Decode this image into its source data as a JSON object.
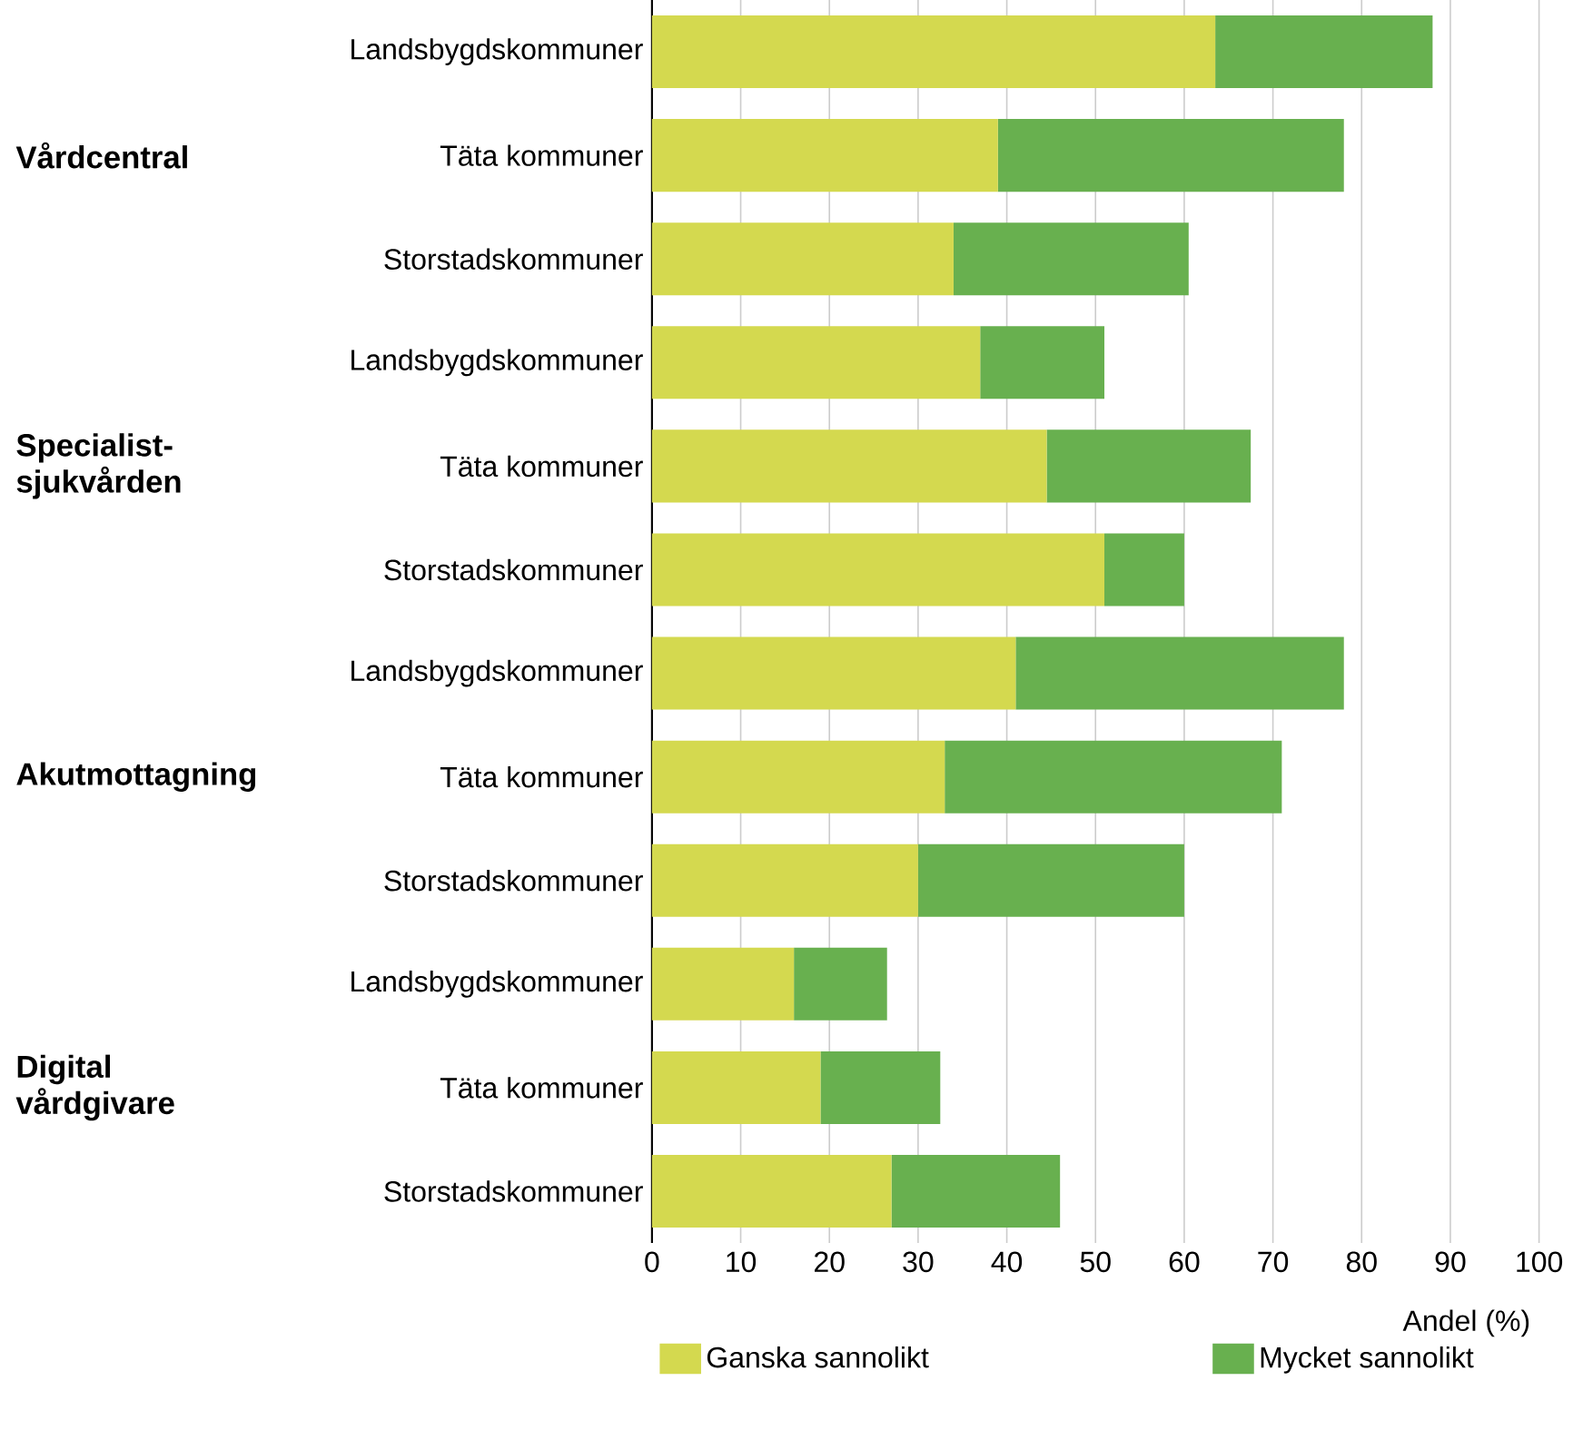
{
  "chart_data": {
    "type": "bar",
    "orientation": "horizontal",
    "stacked": true,
    "categories": [
      "Landsbygdskommuner",
      "Täta kommuner",
      "Storstadskommuner",
      "Landsbygdskommuner",
      "Täta kommuner",
      "Storstadskommuner",
      "Landsbygdskommuner",
      "Täta kommuner",
      "Storstadskommuner",
      "Landsbygdskommuner",
      "Täta kommuner",
      "Storstadskommuner"
    ],
    "series": [
      {
        "name": "Ganska sannolikt",
        "color": "#d4d94f",
        "values": [
          63.5,
          39,
          34,
          37,
          44.5,
          51,
          41,
          33,
          30,
          16,
          19,
          27
        ]
      },
      {
        "name": "Mycket sannolikt",
        "color": "#68b04f",
        "values": [
          24.5,
          39,
          26.5,
          14,
          23,
          9,
          37,
          38,
          30,
          10.5,
          13.5,
          19
        ]
      }
    ],
    "annotations": [
      "Vårdcentral",
      "Specialist-sjukvården",
      "Akutmottagning",
      "Digital vårdgivare"
    ],
    "xlabel": "Andel (%)",
    "xlim": [
      0,
      100
    ],
    "xticks": [
      0,
      10,
      20,
      30,
      40,
      50,
      60,
      70,
      80,
      90,
      100
    ],
    "grid": "x",
    "legend": "bottom"
  }
}
